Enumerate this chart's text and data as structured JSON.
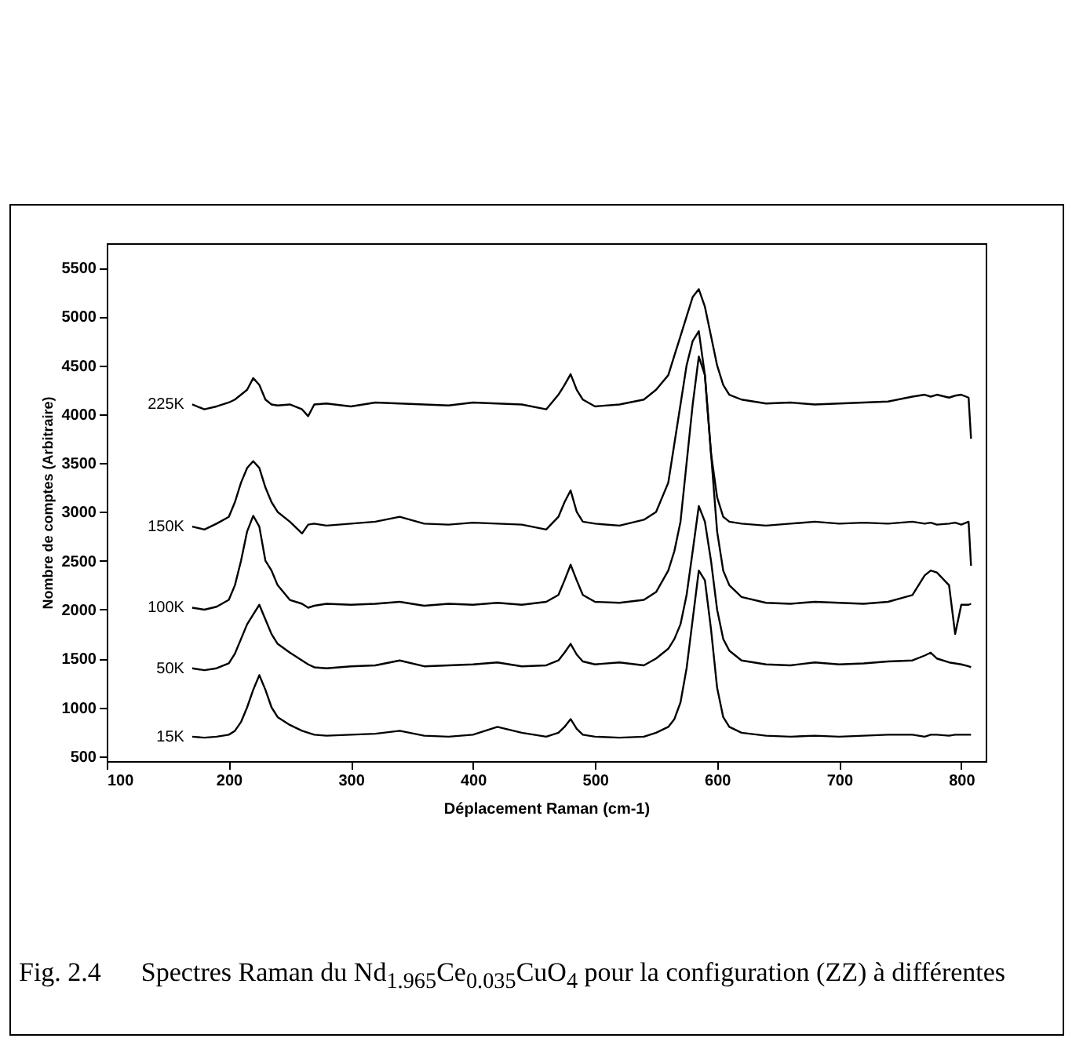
{
  "chart_data": {
    "type": "line",
    "xlabel": "Déplacement Raman (cm-1)",
    "ylabel": "Nombre de comptes (Arbitraire)",
    "xlim": [
      100,
      820
    ],
    "xticks": [
      100,
      200,
      300,
      400,
      500,
      600,
      700,
      800
    ],
    "ylim": [
      450,
      5750
    ],
    "yticks": [
      500,
      1000,
      1500,
      2000,
      2500,
      3000,
      3500,
      4000,
      4500,
      5000,
      5500
    ],
    "grid": false,
    "legend": false,
    "marker": "none",
    "line_style": "solid",
    "x": [
      170,
      180,
      190,
      200,
      205,
      210,
      215,
      220,
      225,
      230,
      235,
      240,
      250,
      260,
      265,
      270,
      280,
      300,
      320,
      340,
      360,
      380,
      400,
      420,
      440,
      460,
      470,
      475,
      480,
      485,
      490,
      500,
      520,
      540,
      550,
      560,
      565,
      570,
      575,
      580,
      585,
      590,
      595,
      600,
      605,
      610,
      620,
      640,
      660,
      680,
      700,
      720,
      740,
      760,
      770,
      775,
      780,
      790,
      795,
      800,
      806,
      808
    ],
    "series": [
      {
        "name": "225K",
        "color": "#000000",
        "values": [
          4100,
          4050,
          4080,
          4120,
          4150,
          4200,
          4250,
          4370,
          4300,
          4150,
          4100,
          4090,
          4100,
          4050,
          3980,
          4100,
          4110,
          4080,
          4120,
          4110,
          4100,
          4090,
          4120,
          4110,
          4100,
          4050,
          4200,
          4300,
          4410,
          4250,
          4150,
          4080,
          4100,
          4150,
          4250,
          4400,
          4600,
          4800,
          5000,
          5200,
          5280,
          5100,
          4800,
          4500,
          4300,
          4200,
          4150,
          4110,
          4120,
          4100,
          4110,
          4120,
          4130,
          4180,
          4200,
          4180,
          4200,
          4170,
          4190,
          4200,
          4170,
          3750
        ]
      },
      {
        "name": "150K",
        "color": "#000000",
        "values": [
          2850,
          2820,
          2880,
          2950,
          3100,
          3300,
          3450,
          3520,
          3450,
          3250,
          3100,
          3000,
          2900,
          2780,
          2870,
          2880,
          2860,
          2880,
          2900,
          2950,
          2880,
          2870,
          2890,
          2880,
          2870,
          2820,
          2950,
          3100,
          3220,
          3000,
          2900,
          2880,
          2860,
          2920,
          3000,
          3300,
          3700,
          4100,
          4500,
          4750,
          4850,
          4400,
          3600,
          3150,
          2950,
          2900,
          2880,
          2860,
          2880,
          2900,
          2880,
          2890,
          2880,
          2900,
          2880,
          2890,
          2870,
          2880,
          2890,
          2870,
          2900,
          2450
        ]
      },
      {
        "name": "100K",
        "color": "#000000",
        "values": [
          2020,
          2000,
          2030,
          2100,
          2250,
          2500,
          2800,
          2960,
          2850,
          2500,
          2400,
          2250,
          2100,
          2060,
          2020,
          2040,
          2060,
          2050,
          2060,
          2080,
          2040,
          2060,
          2050,
          2070,
          2050,
          2080,
          2150,
          2300,
          2460,
          2300,
          2150,
          2080,
          2070,
          2100,
          2180,
          2400,
          2600,
          2900,
          3500,
          4100,
          4590,
          4400,
          3600,
          2800,
          2400,
          2250,
          2130,
          2070,
          2060,
          2080,
          2070,
          2060,
          2080,
          2150,
          2350,
          2400,
          2380,
          2250,
          1750,
          2050,
          2050,
          2060
        ]
      },
      {
        "name": "50K",
        "color": "#000000",
        "values": [
          1400,
          1380,
          1400,
          1450,
          1550,
          1700,
          1850,
          1950,
          2050,
          1900,
          1750,
          1650,
          1560,
          1480,
          1440,
          1410,
          1400,
          1420,
          1430,
          1480,
          1420,
          1430,
          1440,
          1460,
          1420,
          1430,
          1480,
          1560,
          1650,
          1540,
          1470,
          1440,
          1460,
          1430,
          1500,
          1600,
          1700,
          1850,
          2150,
          2600,
          3060,
          2900,
          2500,
          2000,
          1700,
          1580,
          1480,
          1440,
          1430,
          1460,
          1440,
          1450,
          1470,
          1480,
          1530,
          1560,
          1500,
          1460,
          1450,
          1440,
          1420,
          1410
        ]
      },
      {
        "name": "15K",
        "color": "#000000",
        "values": [
          700,
          690,
          700,
          720,
          760,
          850,
          1000,
          1180,
          1330,
          1180,
          1000,
          900,
          820,
          760,
          740,
          720,
          710,
          720,
          730,
          760,
          710,
          700,
          720,
          800,
          740,
          700,
          740,
          800,
          880,
          780,
          720,
          700,
          690,
          700,
          740,
          800,
          880,
          1050,
          1400,
          1900,
          2400,
          2300,
          1800,
          1200,
          900,
          800,
          740,
          710,
          700,
          710,
          700,
          710,
          720,
          720,
          700,
          720,
          720,
          710,
          720,
          720,
          720,
          720
        ]
      }
    ],
    "annotations": [
      "Fig. 2.4      Spectres Raman du Nd$_{1.965}$Ce$_{0.035}$CuO$_{4}$ pour la configuration (ZZ) à différentes"
    ]
  }
}
